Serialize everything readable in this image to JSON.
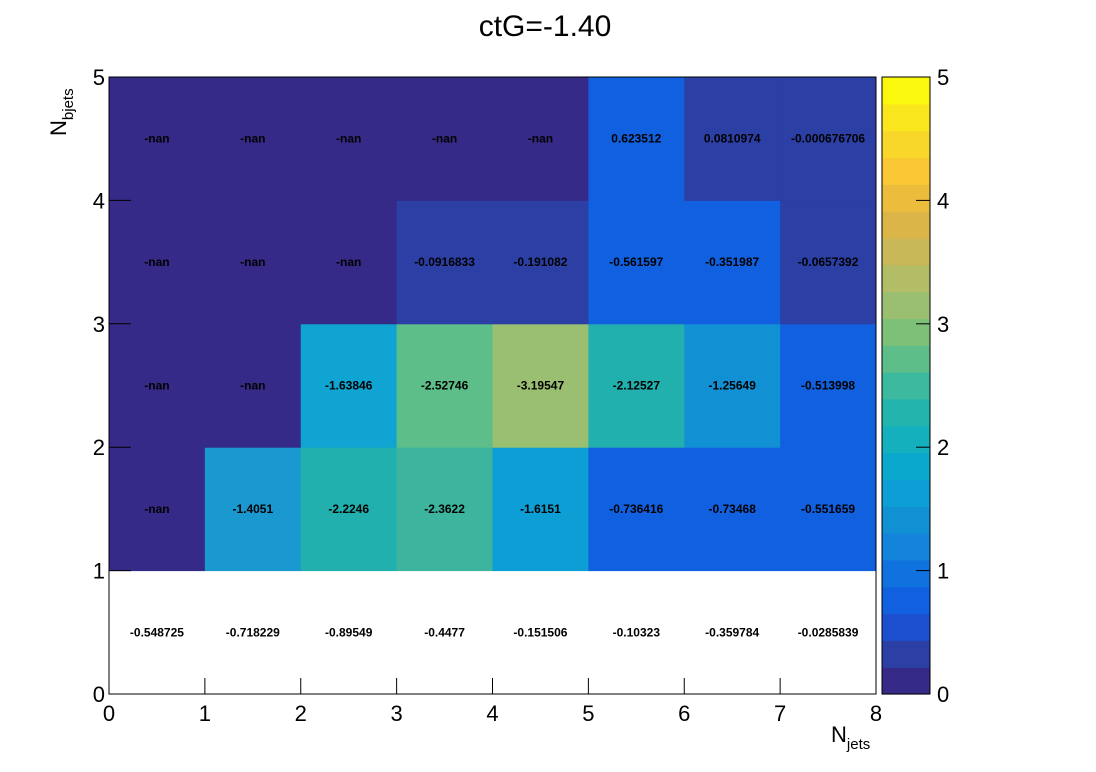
{
  "title": "ctG=-1.40",
  "chart_data": {
    "type": "heatmap",
    "title": "ctG=-1.40",
    "xlabel": {
      "main": "N",
      "sub": "jets"
    },
    "ylabel": {
      "main": "N",
      "sub": "bjets"
    },
    "xlim": [
      0,
      8
    ],
    "ylim": [
      0,
      5
    ],
    "x_ticks": [
      "0",
      "1",
      "2",
      "3",
      "4",
      "5",
      "6",
      "7",
      "8"
    ],
    "y_ticks": [
      "0",
      "1",
      "2",
      "3",
      "4",
      "5"
    ],
    "colorbar": {
      "min": 0,
      "max": 5,
      "ticks": [
        "0",
        "1",
        "2",
        "3",
        "4",
        "5"
      ],
      "palette": "parula"
    },
    "rows": [
      {
        "y": 0,
        "labels": [
          "-0.548725",
          "-0.718229",
          "-0.89549",
          "-0.4477",
          "-0.151506",
          "-0.10323",
          "-0.359784",
          "-0.0285839"
        ]
      },
      {
        "y": 1,
        "labels": [
          "-nan",
          "-1.4051",
          "-2.2246",
          "-2.3622",
          "-1.6151",
          "-0.736416",
          "-0.73468",
          "-0.551659"
        ]
      },
      {
        "y": 2,
        "labels": [
          "-nan",
          "-nan",
          "-1.63846",
          "-2.52746",
          "-3.19547",
          "-2.12527",
          "-1.25649",
          "-0.513998"
        ]
      },
      {
        "y": 3,
        "labels": [
          "-nan",
          "-nan",
          "-nan",
          "-0.0916833",
          "-0.191082",
          "-0.561597",
          "-0.351987",
          "-0.0657392"
        ]
      },
      {
        "y": 4,
        "labels": [
          "-nan",
          "-nan",
          "-nan",
          "-nan",
          "-nan",
          "0.623512",
          "0.0810974",
          "-0.000676706"
        ]
      }
    ],
    "colors": [
      [
        null,
        null,
        null,
        null,
        null,
        null,
        null,
        null
      ],
      [
        "#352a87",
        "#1a98d0",
        "#21b0ad",
        "#3cb49e",
        "#0d9ed5",
        "#1160e0",
        "#1160e0",
        "#1160e0"
      ],
      [
        "#352a87",
        "#352a87",
        "#0fa4d1",
        "#5dbe8a",
        "#9abf70",
        "#21b0ad",
        "#1290d4",
        "#1160e0"
      ],
      [
        "#352a87",
        "#352a87",
        "#352a87",
        "#2c3fa5",
        "#2c3fa5",
        "#1160e0",
        "#1160e0",
        "#2c3fa5"
      ],
      [
        "#352a87",
        "#352a87",
        "#352a87",
        "#352a87",
        "#352a87",
        "#1160e0",
        "#2c3fa5",
        "#2c3fa5"
      ]
    ]
  }
}
